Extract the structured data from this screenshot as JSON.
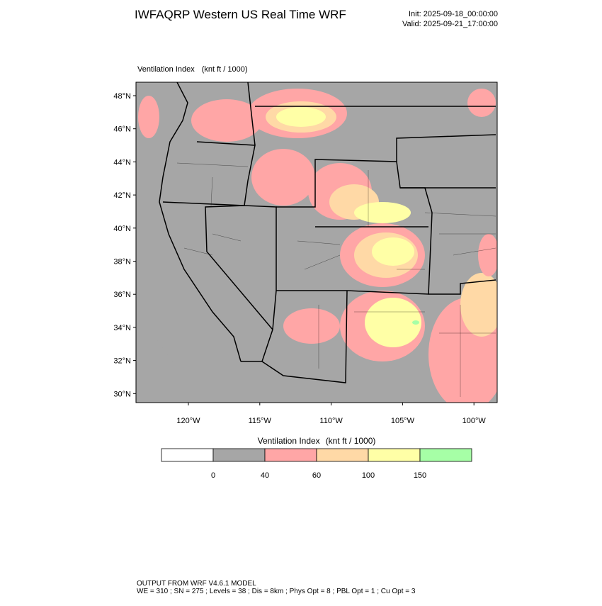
{
  "header": {
    "title": "IWFAQRP Western US Real Time WRF",
    "init": "Init: 2025-09-18_00:00:00",
    "valid": "Valid: 2025-09-21_17:00:00"
  },
  "map": {
    "label": "Ventilation Index",
    "units": "(knt ft / 1000)",
    "lat_labels": [
      "48°N",
      "46°N",
      "44°N",
      "42°N",
      "40°N",
      "38°N",
      "36°N",
      "34°N",
      "32°N",
      "30°N"
    ],
    "lon_labels": [
      "120°W",
      "115°W",
      "110°W",
      "105°W",
      "100°W"
    ]
  },
  "colorbar": {
    "label": "Ventilation Index",
    "units": "(knt ft / 1000)",
    "colors": [
      "#ffffff",
      "#a6a6a6",
      "#ffa6a6",
      "#ffd9a6",
      "#ffffa6",
      "#a6ffa6"
    ],
    "ticks": [
      0,
      40,
      60,
      100,
      150
    ]
  },
  "footer": {
    "line1": "OUTPUT FROM WRF V4.6.1 MODEL",
    "line2": "WE = 310 ; SN = 275 ; Levels = 38 ; Dis = 8km ; Phys Opt = 8 ; PBL Opt = 1 ; Cu Opt = 3"
  }
}
